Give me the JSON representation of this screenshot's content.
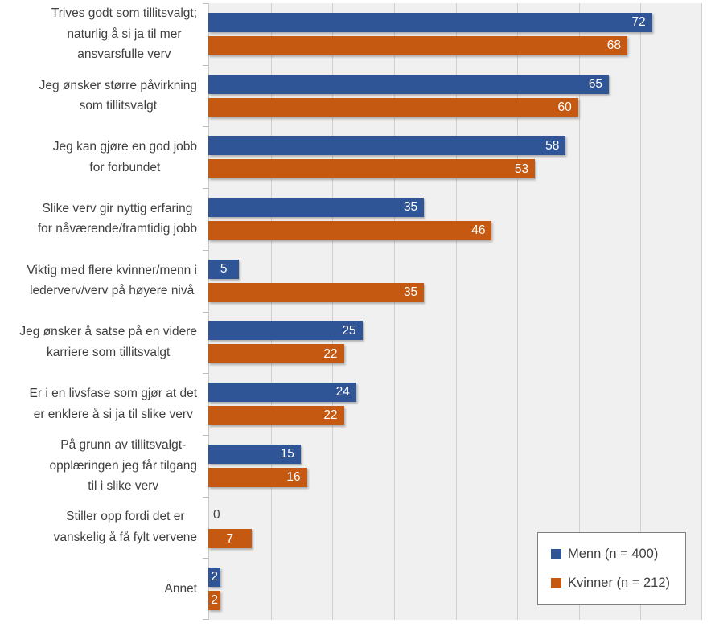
{
  "chart_data": {
    "type": "bar",
    "orientation": "horizontal",
    "title": "",
    "xlabel": "",
    "ylabel": "",
    "xlim": [
      0,
      80
    ],
    "grid_step": 10,
    "grid_on": true,
    "plot_bg_color": "#F0F0F0",
    "grid_color": "#D0D0D0",
    "axis_color": "#BFBFBF",
    "value_label_color": "#FFFFFF",
    "zero_value_label_color": "#404040",
    "legend_position": "bottom-right",
    "categories": [
      {
        "lines": [
          "Trives godt som tillitsvalgt;",
          "naturlig å si ja til mer",
          "ansvarsfulle verv"
        ]
      },
      {
        "lines": [
          "Jeg ønsker større påvirkning",
          "som tillitsvalgt"
        ]
      },
      {
        "lines": [
          "Jeg kan gjøre en god jobb",
          "for forbundet"
        ]
      },
      {
        "lines": [
          "Slike verv gir nyttig erfaring",
          "for nåværende/framtidig jobb"
        ]
      },
      {
        "lines": [
          "Viktig med flere kvinner/menn i",
          "lederverv/verv på høyere nivå"
        ]
      },
      {
        "lines": [
          "Jeg ønsker å satse på en videre",
          "karriere som tillitsvalgt"
        ]
      },
      {
        "lines": [
          "Er i en livsfase som gjør at det",
          "er enklere å si ja til slike verv"
        ]
      },
      {
        "lines": [
          "På grunn av tillitsvalgt-",
          "opplæringen jeg får tilgang",
          "til i slike verv"
        ]
      },
      {
        "lines": [
          "Stiller opp fordi det er",
          "vanskelig å få fylt vervene"
        ]
      },
      {
        "lines": [
          "Annet"
        ]
      }
    ],
    "series": [
      {
        "name": "Menn (n = 400)",
        "color": "#2F5597",
        "values": [
          72,
          65,
          58,
          35,
          5,
          25,
          24,
          15,
          0,
          2
        ]
      },
      {
        "name": "Kvinner (n = 212)",
        "color": "#C65911",
        "values": [
          68,
          60,
          53,
          46,
          35,
          22,
          22,
          16,
          7,
          2
        ]
      }
    ]
  }
}
